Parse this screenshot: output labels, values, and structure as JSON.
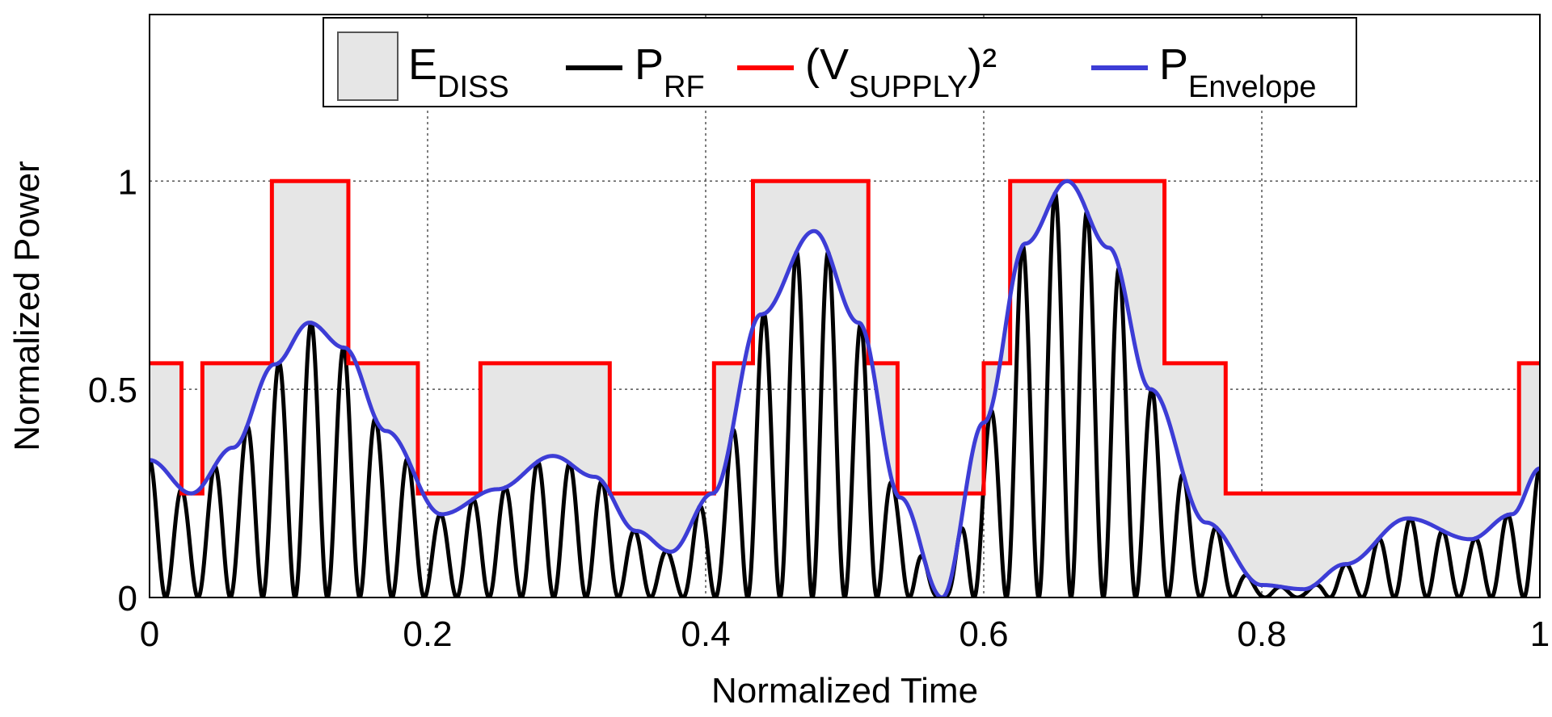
{
  "chart_data": {
    "type": "line",
    "title": "",
    "xlabel": "Normalized Time",
    "ylabel": "Normalized Power",
    "xlim": [
      0,
      1
    ],
    "ylim": [
      0,
      1.4
    ],
    "x_ticks": [
      "0",
      "0.2",
      "0.4",
      "0.6",
      "0.8",
      "1"
    ],
    "y_ticks": [
      "0",
      "0.5",
      "1"
    ],
    "grid": true,
    "legend_position": "top",
    "legend": [
      {
        "key": "ediss",
        "main": "E",
        "sub": "DISS",
        "sup": "",
        "style": "filled-area",
        "color": "#e6e6e6"
      },
      {
        "key": "prf",
        "main": "P",
        "sub": "RF",
        "sup": "",
        "style": "line",
        "color": "#000000"
      },
      {
        "key": "vsupply",
        "main": "(V",
        "sub": "SUPPLY",
        "sup": ")²",
        "style": "line",
        "color": "#ff0000"
      },
      {
        "key": "penv",
        "main": "P",
        "sub": "Envelope",
        "sup": "",
        "style": "line",
        "color": "#3d3dd6"
      }
    ],
    "supply_levels": [
      0.25,
      0.5625,
      1.0
    ],
    "supply_steps": [
      [
        0.0,
        0.5625
      ],
      [
        0.023,
        0.25
      ],
      [
        0.038,
        0.5625
      ],
      [
        0.088,
        1.0
      ],
      [
        0.143,
        0.5625
      ],
      [
        0.193,
        0.25
      ],
      [
        0.238,
        0.5625
      ],
      [
        0.331,
        0.25
      ],
      [
        0.406,
        0.5625
      ],
      [
        0.434,
        1.0
      ],
      [
        0.517,
        0.5625
      ],
      [
        0.538,
        0.25
      ],
      [
        0.6,
        0.5625
      ],
      [
        0.619,
        1.0
      ],
      [
        0.73,
        0.5625
      ],
      [
        0.774,
        0.25
      ],
      [
        0.985,
        0.5625
      ],
      [
        1.0,
        0.5625
      ]
    ],
    "envelope": {
      "x": [
        0.0,
        0.03,
        0.06,
        0.09,
        0.115,
        0.14,
        0.17,
        0.21,
        0.25,
        0.29,
        0.32,
        0.35,
        0.375,
        0.405,
        0.44,
        0.478,
        0.51,
        0.54,
        0.57,
        0.6,
        0.63,
        0.66,
        0.69,
        0.72,
        0.76,
        0.8,
        0.83,
        0.86,
        0.905,
        0.95,
        0.98,
        1.0
      ],
      "y": [
        0.33,
        0.25,
        0.36,
        0.56,
        0.66,
        0.6,
        0.4,
        0.2,
        0.26,
        0.34,
        0.29,
        0.16,
        0.11,
        0.25,
        0.68,
        0.88,
        0.66,
        0.24,
        0.0,
        0.42,
        0.85,
        1.0,
        0.84,
        0.5,
        0.18,
        0.03,
        0.02,
        0.08,
        0.19,
        0.14,
        0.2,
        0.31
      ]
    },
    "rf_carrier_cycles": 43,
    "colors": {
      "envelope": "#3d3dd6",
      "supply": "#ff0000",
      "rf": "#000000",
      "fill": "#e6e6e6",
      "grid": "#555555"
    }
  }
}
